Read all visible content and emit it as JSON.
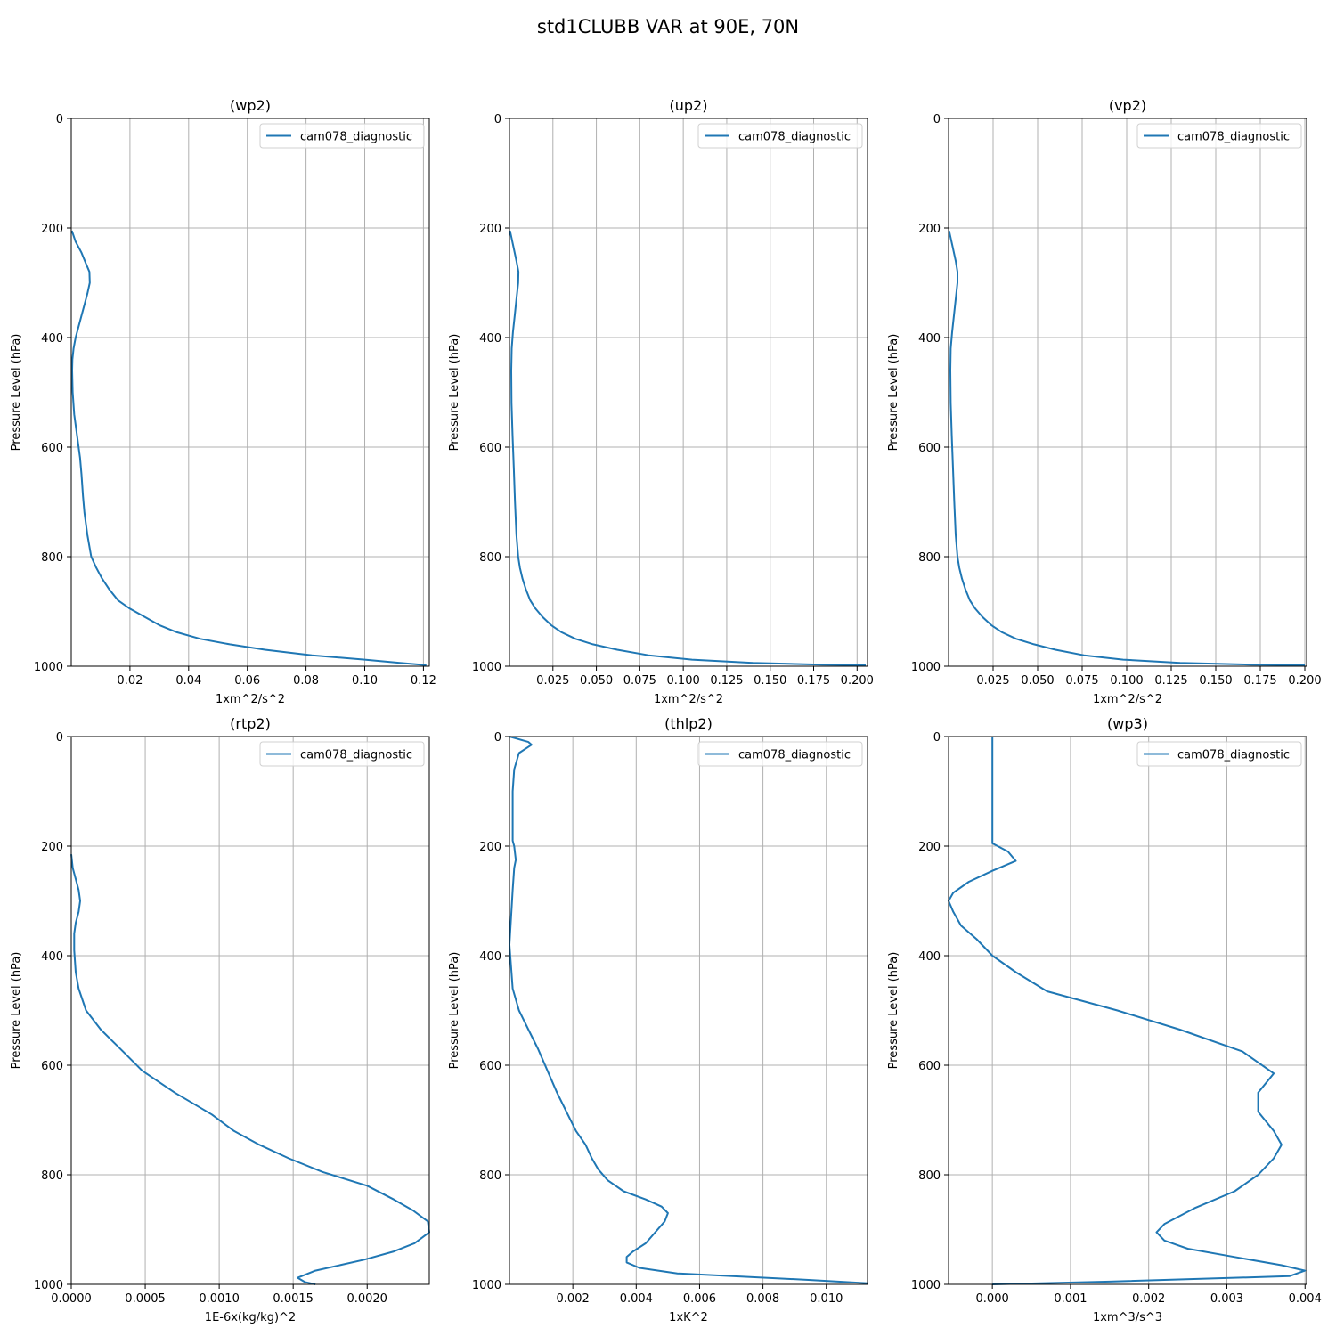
{
  "figure": {
    "suptitle": "std1CLUBB VAR at 90E, 70N"
  },
  "chart_data": [
    {
      "type": "line",
      "title": "(wp2)",
      "xlabel": "1xm^2/s^2",
      "ylabel": "Pressure Level (hPa)",
      "xlim": [
        0.0,
        0.122
      ],
      "ylim": [
        1000,
        0
      ],
      "y_inverted": true,
      "xticks": [
        0.02,
        0.04,
        0.06,
        0.08,
        0.1,
        0.12
      ],
      "xtick_labels": [
        "0.02",
        "0.04",
        "0.06",
        "0.08",
        "0.10",
        "0.12"
      ],
      "yticks": [
        0,
        200,
        400,
        600,
        800,
        1000
      ],
      "ytick_labels": [
        "0",
        "200",
        "400",
        "600",
        "800",
        "1000"
      ],
      "grid": true,
      "legend": "top-right",
      "series": [
        {
          "name": "cam078_diagnostic",
          "color": "#1f77b4",
          "x": [
            0.0002,
            0.0015,
            0.0035,
            0.005,
            0.0062,
            0.0063,
            0.0055,
            0.0045,
            0.0035,
            0.0025,
            0.0015,
            0.0008,
            0.0004,
            0.0003,
            0.0005,
            0.001,
            0.002,
            0.003,
            0.0035,
            0.004,
            0.0045,
            0.0055,
            0.0068,
            0.0085,
            0.0105,
            0.013,
            0.016,
            0.02,
            0.025,
            0.03,
            0.036,
            0.044,
            0.054,
            0.066,
            0.082,
            0.1,
            0.112,
            0.121
          ],
          "y": [
            205,
            225,
            245,
            265,
            280,
            300,
            320,
            340,
            360,
            380,
            400,
            420,
            440,
            460,
            500,
            540,
            580,
            620,
            650,
            690,
            720,
            760,
            800,
            820,
            840,
            860,
            880,
            895,
            910,
            925,
            938,
            950,
            960,
            970,
            980,
            988,
            994,
            998
          ]
        }
      ]
    },
    {
      "type": "line",
      "title": "(up2)",
      "xlabel": "1xm^2/s^2",
      "ylabel": "Pressure Level (hPa)",
      "xlim": [
        0.0,
        0.206
      ],
      "ylim": [
        1000,
        0
      ],
      "y_inverted": true,
      "xticks": [
        0.025,
        0.05,
        0.075,
        0.1,
        0.125,
        0.15,
        0.175,
        0.2
      ],
      "xtick_labels": [
        "0.025",
        "0.050",
        "0.075",
        "0.100",
        "0.125",
        "0.150",
        "0.175",
        "0.200"
      ],
      "yticks": [
        0,
        200,
        400,
        600,
        800,
        1000
      ],
      "ytick_labels": [
        "0",
        "200",
        "400",
        "600",
        "800",
        "1000"
      ],
      "grid": true,
      "legend": "top-right",
      "series": [
        {
          "name": "cam078_diagnostic",
          "color": "#1f77b4",
          "x": [
            0.0003,
            0.002,
            0.004,
            0.0052,
            0.005,
            0.004,
            0.003,
            0.002,
            0.0013,
            0.001,
            0.0012,
            0.0018,
            0.0025,
            0.0032,
            0.004,
            0.005,
            0.006,
            0.0075,
            0.0095,
            0.012,
            0.015,
            0.019,
            0.024,
            0.03,
            0.038,
            0.048,
            0.062,
            0.08,
            0.105,
            0.14,
            0.18,
            0.205
          ],
          "y": [
            205,
            230,
            260,
            280,
            300,
            330,
            360,
            390,
            420,
            460,
            520,
            580,
            640,
            700,
            760,
            800,
            820,
            840,
            860,
            880,
            895,
            910,
            925,
            938,
            950,
            960,
            970,
            980,
            988,
            994,
            997,
            998
          ]
        }
      ]
    },
    {
      "type": "line",
      "title": "(vp2)",
      "xlabel": "1xm^2/s^2",
      "ylabel": "Pressure Level (hPa)",
      "xlim": [
        0.0,
        0.201
      ],
      "ylim": [
        1000,
        0
      ],
      "y_inverted": true,
      "xticks": [
        0.025,
        0.05,
        0.075,
        0.1,
        0.125,
        0.15,
        0.175,
        0.2
      ],
      "xtick_labels": [
        "0.025",
        "0.050",
        "0.075",
        "0.100",
        "0.125",
        "0.150",
        "0.175",
        "0.200"
      ],
      "yticks": [
        0,
        200,
        400,
        600,
        800,
        1000
      ],
      "ytick_labels": [
        "0",
        "200",
        "400",
        "600",
        "800",
        "1000"
      ],
      "grid": true,
      "legend": "top-right",
      "series": [
        {
          "name": "cam078_diagnostic",
          "color": "#1f77b4",
          "x": [
            0.0003,
            0.002,
            0.004,
            0.005,
            0.005,
            0.004,
            0.003,
            0.002,
            0.0012,
            0.001,
            0.0012,
            0.0018,
            0.0025,
            0.0032,
            0.004,
            0.005,
            0.006,
            0.0075,
            0.0095,
            0.012,
            0.015,
            0.019,
            0.024,
            0.03,
            0.038,
            0.048,
            0.06,
            0.076,
            0.098,
            0.13,
            0.17,
            0.2
          ],
          "y": [
            205,
            230,
            260,
            280,
            300,
            330,
            360,
            390,
            420,
            460,
            520,
            580,
            640,
            700,
            760,
            800,
            820,
            840,
            860,
            880,
            895,
            910,
            925,
            938,
            950,
            960,
            970,
            980,
            988,
            994,
            997,
            998
          ]
        }
      ]
    },
    {
      "type": "line",
      "title": "(rtp2)",
      "xlabel": "1E-6x(kg/kg)^2",
      "ylabel": "Pressure Level (hPa)",
      "xlim": [
        0.0,
        0.00242
      ],
      "ylim": [
        1000,
        0
      ],
      "y_inverted": true,
      "xticks": [
        0.0,
        0.0005,
        0.001,
        0.0015,
        0.002
      ],
      "xtick_labels": [
        "0.0000",
        "0.0005",
        "0.0010",
        "0.0015",
        "0.0020"
      ],
      "yticks": [
        0,
        200,
        400,
        600,
        800,
        1000
      ],
      "ytick_labels": [
        "0",
        "200",
        "400",
        "600",
        "800",
        "1000"
      ],
      "grid": true,
      "legend": "top-right",
      "series": [
        {
          "name": "cam078_diagnostic",
          "color": "#1f77b4",
          "x": [
            0.0,
            1e-05,
            3e-05,
            5e-05,
            6e-05,
            5e-05,
            3e-05,
            2e-05,
            2e-05,
            3e-05,
            5e-05,
            0.0001,
            0.0002,
            0.00035,
            0.00048,
            0.0007,
            0.00095,
            0.0011,
            0.00127,
            0.00147,
            0.0017,
            0.002,
            0.00218,
            0.00231,
            0.00241,
            0.00242,
            0.00232,
            0.00218,
            0.00198,
            0.00165,
            0.00153,
            0.00158,
            0.00165
          ],
          "y": [
            215,
            240,
            260,
            280,
            300,
            320,
            340,
            360,
            390,
            430,
            460,
            500,
            535,
            575,
            610,
            650,
            690,
            720,
            745,
            770,
            795,
            820,
            845,
            865,
            885,
            905,
            925,
            940,
            955,
            975,
            988,
            996,
            1000
          ]
        }
      ]
    },
    {
      "type": "line",
      "title": "(thlp2)",
      "xlabel": "1xK^2",
      "ylabel": "Pressure Level (hPa)",
      "xlim": [
        0.0,
        0.0113
      ],
      "ylim": [
        1000,
        0
      ],
      "y_inverted": true,
      "xticks": [
        0.002,
        0.004,
        0.006,
        0.008,
        0.01
      ],
      "xtick_labels": [
        "0.002",
        "0.004",
        "0.006",
        "0.008",
        "0.010"
      ],
      "yticks": [
        0,
        200,
        400,
        600,
        800,
        1000
      ],
      "ytick_labels": [
        "0",
        "200",
        "400",
        "600",
        "800",
        "1000"
      ],
      "grid": true,
      "legend": "top-right",
      "series": [
        {
          "name": "cam078_diagnostic",
          "color": "#1f77b4",
          "x": [
            0.0,
            0.0006,
            0.0007,
            0.0003,
            0.00015,
            0.0001,
            0.0001,
            0.0001,
            0.00015,
            0.0002,
            0.00015,
            0.0001,
            5e-05,
            0.0,
            0.0001,
            0.0003,
            0.0006,
            0.0009,
            0.0012,
            0.0015,
            0.0018,
            0.0021,
            0.0024,
            0.0026,
            0.0028,
            0.0031,
            0.0036,
            0.0043,
            0.0048,
            0.005,
            0.0049,
            0.0046,
            0.0043,
            0.0039,
            0.0037,
            0.0037,
            0.0041,
            0.0053,
            0.0095,
            0.0113
          ],
          "y": [
            0,
            10,
            15,
            30,
            60,
            100,
            150,
            190,
            200,
            225,
            240,
            280,
            330,
            380,
            460,
            500,
            535,
            570,
            610,
            650,
            685,
            720,
            745,
            770,
            790,
            810,
            830,
            845,
            858,
            870,
            885,
            905,
            925,
            940,
            950,
            960,
            970,
            980,
            992,
            998
          ]
        }
      ]
    },
    {
      "type": "line",
      "title": "(wp3)",
      "xlabel": "1xm^3/s^3",
      "ylabel": "Pressure Level (hPa)",
      "xlim": [
        -0.00056,
        0.00402
      ],
      "ylim": [
        1000,
        0
      ],
      "y_inverted": true,
      "xticks": [
        0.0,
        0.001,
        0.002,
        0.003,
        0.004
      ],
      "xtick_labels": [
        "0.000",
        "0.001",
        "0.002",
        "0.003",
        "0.004"
      ],
      "yticks": [
        0,
        200,
        400,
        600,
        800,
        1000
      ],
      "ytick_labels": [
        "0",
        "200",
        "400",
        "600",
        "800",
        "1000"
      ],
      "grid": true,
      "legend": "top-right",
      "series": [
        {
          "name": "cam078_diagnostic",
          "color": "#1f77b4",
          "x": [
            0.0,
            0.0,
            0.0,
            0.0002,
            0.0003,
            0.0,
            -0.0003,
            -0.0005,
            -0.00056,
            -0.0005,
            -0.0004,
            -0.0002,
            0.0,
            0.0003,
            0.0007,
            0.0016,
            0.0024,
            0.0032,
            0.0036,
            0.0034,
            0.0034,
            0.0036,
            0.0037,
            0.0036,
            0.0034,
            0.0031,
            0.0026,
            0.0022,
            0.0021,
            0.0022,
            0.0025,
            0.0031,
            0.0037,
            0.004,
            0.0038,
            0.0015,
            0.0
          ],
          "y": [
            0,
            100,
            195,
            210,
            227,
            245,
            265,
            285,
            300,
            320,
            345,
            370,
            400,
            430,
            465,
            500,
            535,
            575,
            615,
            650,
            685,
            720,
            745,
            770,
            800,
            830,
            860,
            890,
            905,
            920,
            935,
            950,
            965,
            975,
            985,
            995,
            1000
          ]
        }
      ]
    }
  ]
}
